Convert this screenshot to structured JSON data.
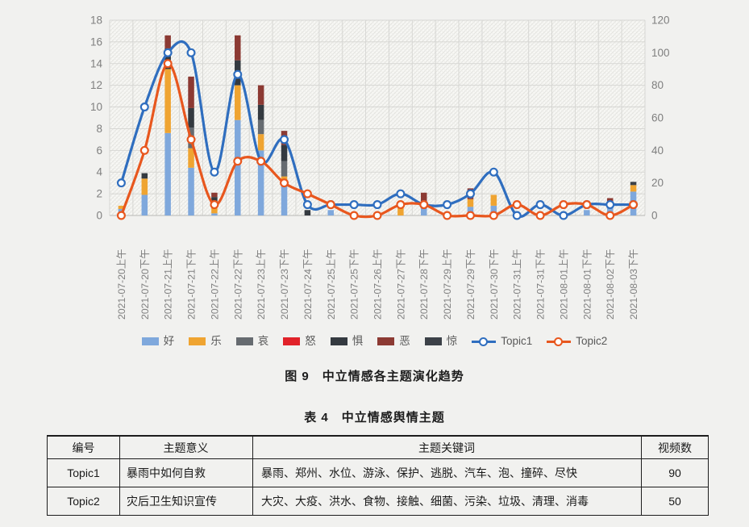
{
  "chart": {
    "caption": "图 9　中立情感各主题演化趋势"
  },
  "chart_data": {
    "type": "combo-stacked-bar-line",
    "categories": [
      "2021-07-20上午",
      "2021-07-20下午",
      "2021-07-21上午",
      "2021-07-21下午",
      "2021-07-22上午",
      "2021-07-22下午",
      "2021-07-23上午",
      "2021-07-23下午",
      "2021-07-24下午",
      "2021-07-25上午",
      "2021-07-25下午",
      "2021-07-26上午",
      "2021-07-27下午",
      "2021-07-28下午",
      "2021-07-29上午",
      "2021-07-29下午",
      "2021-07-30下午",
      "2021-07-31上午",
      "2021-07-31下午",
      "2021-08-01上午",
      "2021-08-01下午",
      "2021-08-02下午",
      "2021-08-03下午"
    ],
    "bar_series": [
      {
        "name": "好",
        "color": "#7FA8DC",
        "values": [
          0.6,
          1.9,
          7.6,
          4.4,
          0.2,
          8.8,
          6,
          3.1,
          0,
          0.5,
          0,
          0,
          0,
          1.2,
          0,
          0.8,
          0.9,
          0,
          0,
          0,
          0.5,
          1,
          2.2
        ]
      },
      {
        "name": "乐",
        "color": "#EFA431",
        "values": [
          0.3,
          1.5,
          5.9,
          1.8,
          1,
          3.2,
          1.5,
          0.5,
          0,
          0,
          0,
          0,
          1,
          0,
          0,
          0.7,
          1,
          0,
          0,
          0,
          0,
          0,
          0.6
        ]
      },
      {
        "name": "哀",
        "color": "#666B70",
        "values": [
          0,
          0,
          0,
          1.9,
          0,
          0,
          1.3,
          1.4,
          0,
          0,
          0,
          0,
          0,
          0,
          0,
          0,
          0,
          0,
          0,
          0,
          0,
          0.2,
          0
        ]
      },
      {
        "name": "怒",
        "color": "#E12229",
        "values": [
          0,
          0,
          0,
          0,
          0,
          0,
          0,
          0,
          0,
          0,
          0,
          0,
          0,
          0,
          0,
          0,
          0,
          0,
          0,
          0,
          0,
          0,
          0
        ]
      },
      {
        "name": "惧",
        "color": "#343A40",
        "values": [
          0,
          0.5,
          1.9,
          1.8,
          0.5,
          2.3,
          1.4,
          1.5,
          0.5,
          0,
          0,
          0,
          0,
          0,
          0,
          0,
          0,
          0,
          0,
          0,
          0,
          0,
          0
        ]
      },
      {
        "name": "恶",
        "color": "#8C3A33",
        "values": [
          0,
          0,
          1.2,
          2.9,
          0.4,
          2.3,
          1.8,
          1.3,
          0,
          0,
          0,
          0,
          0,
          0.9,
          0,
          1,
          0,
          0,
          0,
          0,
          0,
          0.4,
          0
        ]
      },
      {
        "name": "惊",
        "color": "#3C4148",
        "values": [
          0,
          0,
          0,
          0,
          0,
          0,
          0,
          0,
          0,
          0,
          0,
          0,
          0,
          0,
          0,
          0,
          0,
          0,
          0,
          0,
          0,
          0,
          0.3
        ]
      }
    ],
    "line_series": [
      {
        "name": "Topic1",
        "color": "#2F6EBF",
        "values": [
          3,
          10,
          15,
          15,
          4,
          13,
          5,
          7,
          1,
          1,
          1,
          1,
          2,
          1,
          1,
          2,
          4,
          0,
          1,
          0,
          1,
          1,
          1
        ]
      },
      {
        "name": "Topic2",
        "color": "#E8571E",
        "values": [
          0,
          6,
          14,
          7,
          1,
          5,
          5,
          3,
          2,
          1,
          0,
          0,
          1,
          1,
          0,
          0,
          0,
          1,
          0,
          1,
          1,
          0,
          1
        ]
      }
    ],
    "left_axis": {
      "min": 0,
      "max": 18,
      "step": 2,
      "ticks": [
        0,
        2,
        4,
        6,
        8,
        10,
        12,
        14,
        16,
        18
      ]
    },
    "right_axis": {
      "min": 0,
      "max": 120,
      "step": 20,
      "ticks": [
        0,
        20,
        40,
        60,
        80,
        100,
        120
      ]
    },
    "grid": true,
    "legend_position": "bottom",
    "x_labels_rotation": 90
  },
  "table": {
    "title": "表 4　中立情感舆情主题",
    "headers": [
      "编号",
      "主题意义",
      "主题关键词",
      "视频数"
    ],
    "rows": [
      {
        "id": "Topic1",
        "meaning": "暴雨中如何自救",
        "keywords": "暴雨、郑州、水位、游泳、保护、逃脱、汽车、泡、撞碎、尽快",
        "count": "90"
      },
      {
        "id": "Topic2",
        "meaning": "灾后卫生知识宣传",
        "keywords": "大灾、大疫、洪水、食物、接触、细菌、污染、垃圾、清理、消毒",
        "count": "50"
      }
    ]
  }
}
